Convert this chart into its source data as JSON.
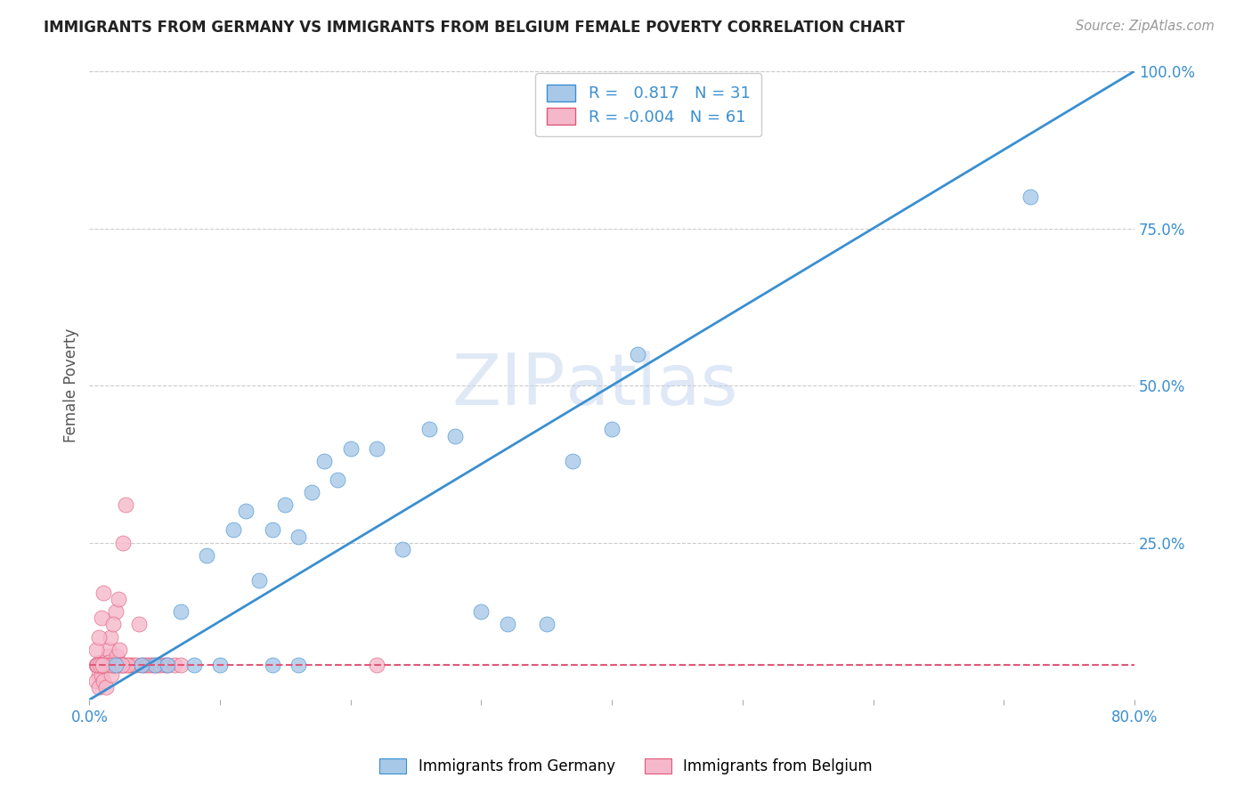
{
  "title": "IMMIGRANTS FROM GERMANY VS IMMIGRANTS FROM BELGIUM FEMALE POVERTY CORRELATION CHART",
  "source": "Source: ZipAtlas.com",
  "ylabel": "Female Poverty",
  "xlim": [
    0.0,
    0.8
  ],
  "ylim": [
    0.0,
    1.0
  ],
  "germany_color": "#a8c8e8",
  "belgium_color": "#f5b8cb",
  "germany_line_color": "#3a8fd0",
  "belgium_line_color": "#e05878",
  "germany_R": 0.817,
  "germany_N": 31,
  "belgium_R": -0.004,
  "belgium_N": 61,
  "germany_trend_x": [
    0.0,
    0.8
  ],
  "germany_trend_y": [
    0.0,
    1.0
  ],
  "belgium_trend_x": [
    0.0,
    0.8
  ],
  "belgium_trend_y": [
    0.055,
    0.055
  ],
  "germany_scatter_x": [
    0.02,
    0.05,
    0.07,
    0.08,
    0.09,
    0.1,
    0.11,
    0.12,
    0.13,
    0.14,
    0.15,
    0.16,
    0.17,
    0.18,
    0.19,
    0.2,
    0.22,
    0.24,
    0.26,
    0.28,
    0.3,
    0.32,
    0.35,
    0.37,
    0.4,
    0.42,
    0.72,
    0.04,
    0.06,
    0.14,
    0.16
  ],
  "germany_scatter_y": [
    0.055,
    0.055,
    0.14,
    0.055,
    0.23,
    0.055,
    0.27,
    0.3,
    0.19,
    0.27,
    0.31,
    0.26,
    0.33,
    0.38,
    0.35,
    0.4,
    0.4,
    0.24,
    0.43,
    0.42,
    0.14,
    0.12,
    0.12,
    0.38,
    0.43,
    0.55,
    0.8,
    0.055,
    0.055,
    0.055,
    0.055
  ],
  "belgium_scatter_x": [
    0.005,
    0.007,
    0.008,
    0.01,
    0.012,
    0.014,
    0.015,
    0.016,
    0.018,
    0.02,
    0.022,
    0.024,
    0.026,
    0.028,
    0.03,
    0.032,
    0.034,
    0.036,
    0.038,
    0.04,
    0.042,
    0.044,
    0.046,
    0.048,
    0.05,
    0.052,
    0.054,
    0.058,
    0.06,
    0.065,
    0.07,
    0.005,
    0.007,
    0.009,
    0.011,
    0.013,
    0.015,
    0.017,
    0.019,
    0.021,
    0.023,
    0.025,
    0.027,
    0.029,
    0.006,
    0.008,
    0.01,
    0.012,
    0.016,
    0.018,
    0.022,
    0.005,
    0.007,
    0.009,
    0.011,
    0.006,
    0.008,
    0.01,
    0.22,
    0.025,
    0.018
  ],
  "belgium_scatter_y": [
    0.055,
    0.04,
    0.06,
    0.055,
    0.055,
    0.07,
    0.08,
    0.1,
    0.055,
    0.14,
    0.16,
    0.055,
    0.25,
    0.31,
    0.055,
    0.055,
    0.055,
    0.055,
    0.12,
    0.055,
    0.055,
    0.055,
    0.055,
    0.055,
    0.055,
    0.055,
    0.055,
    0.055,
    0.055,
    0.055,
    0.055,
    0.03,
    0.02,
    0.04,
    0.03,
    0.02,
    0.06,
    0.04,
    0.055,
    0.07,
    0.08,
    0.055,
    0.055,
    0.055,
    0.055,
    0.055,
    0.055,
    0.055,
    0.055,
    0.055,
    0.055,
    0.08,
    0.1,
    0.13,
    0.17,
    0.055,
    0.055,
    0.055,
    0.055,
    0.055,
    0.12
  ],
  "watermark_zip": "ZIP",
  "watermark_atlas": "atlas",
  "background_color": "#ffffff",
  "grid_color": "#cccccc"
}
